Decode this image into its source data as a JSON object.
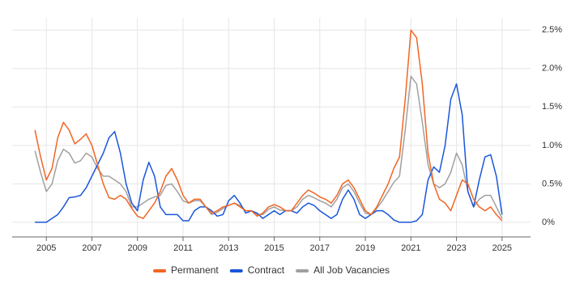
{
  "chart_data": {
    "type": "line",
    "x": [
      2004.5,
      2004.75,
      2005,
      2005.25,
      2005.5,
      2005.75,
      2006,
      2006.25,
      2006.5,
      2006.75,
      2007,
      2007.25,
      2007.5,
      2007.75,
      2008,
      2008.25,
      2008.5,
      2008.75,
      2009,
      2009.25,
      2009.5,
      2009.75,
      2010,
      2010.25,
      2010.5,
      2010.75,
      2011,
      2011.25,
      2011.5,
      2011.75,
      2012,
      2012.25,
      2012.5,
      2012.75,
      2013,
      2013.25,
      2013.5,
      2013.75,
      2014,
      2014.25,
      2014.5,
      2014.75,
      2015,
      2015.25,
      2015.5,
      2015.75,
      2016,
      2016.25,
      2016.5,
      2016.75,
      2017,
      2017.25,
      2017.5,
      2017.75,
      2018,
      2018.25,
      2018.5,
      2018.75,
      2019,
      2019.25,
      2019.5,
      2019.75,
      2020,
      2020.25,
      2020.5,
      2020.75,
      2021,
      2021.25,
      2021.5,
      2021.75,
      2022,
      2022.25,
      2022.5,
      2022.75,
      2023,
      2023.25,
      2023.5,
      2023.75,
      2024,
      2024.25,
      2024.5,
      2024.75,
      2025
    ],
    "series": [
      {
        "name": "Permanent",
        "color": "#f26522",
        "values": [
          1.2,
          0.85,
          0.55,
          0.7,
          1.1,
          1.3,
          1.2,
          1.02,
          1.08,
          1.15,
          1.0,
          0.75,
          0.5,
          0.32,
          0.3,
          0.35,
          0.3,
          0.18,
          0.08,
          0.05,
          0.15,
          0.25,
          0.4,
          0.6,
          0.7,
          0.55,
          0.35,
          0.25,
          0.3,
          0.3,
          0.2,
          0.12,
          0.15,
          0.2,
          0.22,
          0.25,
          0.2,
          0.15,
          0.15,
          0.08,
          0.12,
          0.2,
          0.23,
          0.2,
          0.15,
          0.15,
          0.25,
          0.35,
          0.42,
          0.38,
          0.33,
          0.3,
          0.25,
          0.35,
          0.5,
          0.55,
          0.45,
          0.3,
          0.15,
          0.1,
          0.2,
          0.35,
          0.5,
          0.7,
          0.85,
          1.6,
          2.5,
          2.4,
          1.8,
          0.9,
          0.5,
          0.3,
          0.25,
          0.15,
          0.35,
          0.55,
          0.5,
          0.3,
          0.2,
          0.15,
          0.2,
          0.1,
          0.02
        ]
      },
      {
        "name": "Contract",
        "color": "#1a56db",
        "values": [
          0,
          0,
          0,
          0.05,
          0.1,
          0.2,
          0.32,
          0.33,
          0.35,
          0.45,
          0.6,
          0.75,
          0.9,
          1.1,
          1.18,
          0.9,
          0.5,
          0.25,
          0.15,
          0.55,
          0.78,
          0.6,
          0.2,
          0.1,
          0.1,
          0.1,
          0.02,
          0.02,
          0.15,
          0.2,
          0.2,
          0.15,
          0.08,
          0.1,
          0.28,
          0.35,
          0.25,
          0.12,
          0.15,
          0.12,
          0.05,
          0.1,
          0.15,
          0.1,
          0.15,
          0.15,
          0.12,
          0.2,
          0.25,
          0.22,
          0.15,
          0.1,
          0.05,
          0.1,
          0.3,
          0.42,
          0.3,
          0.1,
          0.05,
          0.1,
          0.15,
          0.15,
          0.1,
          0.03,
          0,
          0,
          0,
          0.02,
          0.1,
          0.55,
          0.72,
          0.65,
          1.0,
          1.6,
          1.8,
          1.4,
          0.4,
          0.2,
          0.55,
          0.85,
          0.88,
          0.6,
          0.1
        ]
      },
      {
        "name": "All Job Vacancies",
        "color": "#a0a0a0",
        "values": [
          0.93,
          0.65,
          0.4,
          0.5,
          0.8,
          0.95,
          0.9,
          0.77,
          0.8,
          0.9,
          0.85,
          0.7,
          0.6,
          0.6,
          0.55,
          0.5,
          0.4,
          0.2,
          0.2,
          0.25,
          0.3,
          0.33,
          0.35,
          0.48,
          0.5,
          0.4,
          0.28,
          0.25,
          0.28,
          0.28,
          0.2,
          0.1,
          0.13,
          0.18,
          0.22,
          0.25,
          0.22,
          0.15,
          0.15,
          0.1,
          0.1,
          0.17,
          0.2,
          0.16,
          0.15,
          0.15,
          0.2,
          0.3,
          0.35,
          0.32,
          0.28,
          0.25,
          0.2,
          0.3,
          0.45,
          0.5,
          0.4,
          0.25,
          0.12,
          0.1,
          0.18,
          0.28,
          0.4,
          0.52,
          0.6,
          1.2,
          1.9,
          1.8,
          1.3,
          0.75,
          0.5,
          0.45,
          0.5,
          0.65,
          0.9,
          0.75,
          0.4,
          0.2,
          0.3,
          0.35,
          0.35,
          0.2,
          0.05
        ]
      }
    ],
    "xlim": [
      2003.5,
      2026.25
    ],
    "xticks": [
      2005,
      2007,
      2009,
      2011,
      2013,
      2015,
      2017,
      2019,
      2021,
      2023,
      2025
    ],
    "ylim": [
      -0.19,
      2.66
    ],
    "yticks": [
      {
        "value": 0,
        "label": "0%"
      },
      {
        "value": 0.5,
        "label": "0.5%"
      },
      {
        "value": 1,
        "label": "1.0%"
      },
      {
        "value": 1.5,
        "label": "1.5%"
      },
      {
        "value": 2,
        "label": "2.0%"
      },
      {
        "value": 2.5,
        "label": "2.5%"
      }
    ],
    "grid": true,
    "legend": "bottom"
  }
}
